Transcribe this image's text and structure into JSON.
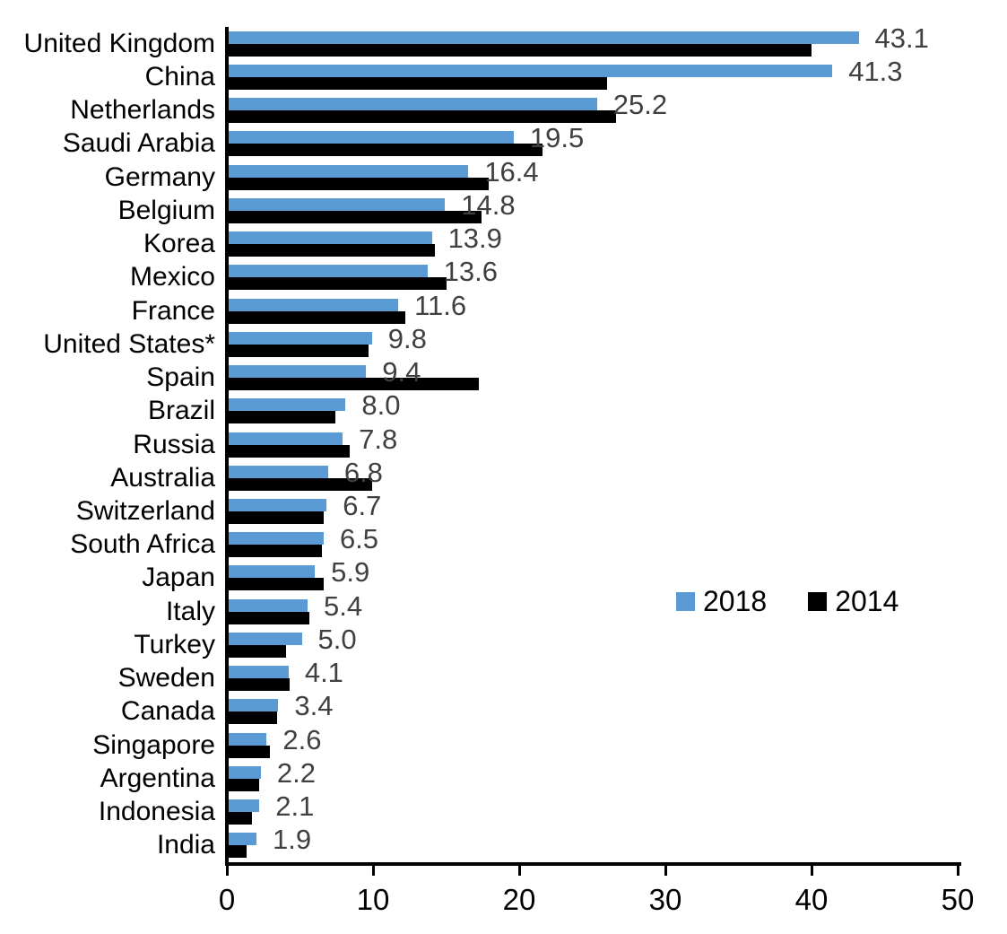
{
  "chart_data": {
    "type": "bar",
    "orientation": "horizontal",
    "grouping": "grouped",
    "title": "",
    "xlabel": "",
    "ylabel": "",
    "xlim": [
      0,
      50
    ],
    "xticks": [
      0,
      10,
      20,
      30,
      40,
      50
    ],
    "xtick_labels": [
      "0",
      "10",
      "20",
      "30",
      "40",
      "50"
    ],
    "grid": "off",
    "legend_position": "middle-right",
    "categories": [
      "United Kingdom",
      "China",
      "Netherlands",
      "Saudi Arabia",
      "Germany",
      "Belgium",
      "Korea",
      "Mexico",
      "France",
      "United States*",
      "Spain",
      "Brazil",
      "Russia",
      "Australia",
      "Switzerland",
      "South Africa",
      "Japan",
      "Italy",
      "Turkey",
      "Sweden",
      "Canada",
      "Singapore",
      "Argentina",
      "Indonesia",
      "India"
    ],
    "series": [
      {
        "name": "2018",
        "color": "#5B9BD5",
        "values": [
          43.1,
          41.3,
          25.2,
          19.5,
          16.4,
          14.8,
          13.9,
          13.6,
          11.6,
          9.8,
          9.4,
          8.0,
          7.8,
          6.8,
          6.7,
          6.5,
          5.9,
          5.4,
          5.0,
          4.1,
          3.4,
          2.6,
          2.2,
          2.1,
          1.9
        ]
      },
      {
        "name": "2014",
        "color": "#000000",
        "values": [
          39.9,
          25.9,
          26.5,
          21.5,
          17.8,
          17.3,
          14.1,
          14.9,
          12.1,
          9.6,
          17.1,
          7.3,
          8.3,
          9.8,
          6.5,
          6.4,
          6.5,
          5.5,
          3.9,
          4.2,
          3.3,
          2.8,
          2.1,
          1.6,
          1.2
        ]
      }
    ],
    "value_labels": [
      "43.1",
      "41.3",
      "25.2",
      "19.5",
      "16.4",
      "14.8",
      "13.9",
      "13.6",
      "11.6",
      "9.8",
      "9.4",
      "8.0",
      "7.8",
      "6.8",
      "6.7",
      "6.5",
      "5.9",
      "5.4",
      "5.0",
      "4.1",
      "3.4",
      "2.6",
      "2.2",
      "2.1",
      "1.9"
    ],
    "value_label_series": "2018",
    "value_label_color": "#404040",
    "axis_color": "#000000"
  }
}
